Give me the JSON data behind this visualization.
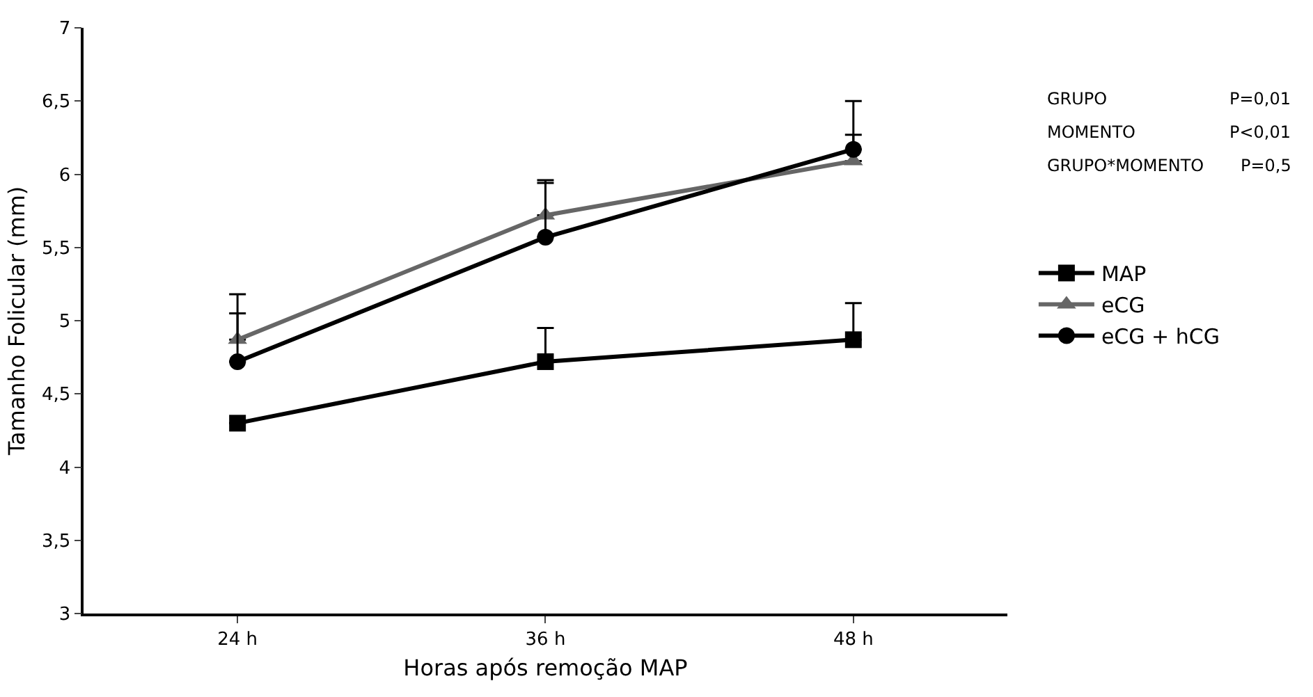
{
  "chart_data": {
    "type": "line",
    "xlabel": "Horas após remoção MAP",
    "ylabel": "Tamanho Folicular (mm)",
    "categories": [
      "24 h",
      "36 h",
      "48 h"
    ],
    "series": [
      {
        "name": "MAP",
        "color": "#000000",
        "marker": "square",
        "values": [
          4.3,
          4.72,
          4.87
        ],
        "errors": [
          null,
          [
            4.72,
            4.95
          ],
          [
            4.87,
            5.12
          ]
        ]
      },
      {
        "name": "eCG",
        "color": "#666666",
        "marker": "triangle",
        "values": [
          4.87,
          5.72,
          6.09
        ],
        "errors": [
          [
            4.87,
            5.18
          ],
          [
            5.72,
            5.96
          ],
          [
            6.09,
            6.27
          ]
        ]
      },
      {
        "name": "eCG + hCG",
        "color": "#000000",
        "marker": "circle",
        "values": [
          4.72,
          5.57,
          6.17
        ],
        "errors": [
          [
            4.72,
            5.05
          ],
          [
            5.57,
            5.94
          ],
          [
            6.17,
            6.5
          ]
        ]
      }
    ],
    "ylim": [
      3,
      7
    ],
    "yticks": [
      {
        "value": 3,
        "label": "3"
      },
      {
        "value": 3.5,
        "label": "3,5"
      },
      {
        "value": 4,
        "label": "4"
      },
      {
        "value": 4.5,
        "label": "4,5"
      },
      {
        "value": 5,
        "label": "5"
      },
      {
        "value": 5.5,
        "label": "5,5"
      },
      {
        "value": 6,
        "label": "6"
      },
      {
        "value": 6.5,
        "label": "6,5"
      },
      {
        "value": 7,
        "label": "7"
      }
    ],
    "legend": "right",
    "line_style": "solid",
    "annotations": [
      "GRUPO",
      "P=0,01",
      "MOMENTO",
      "P<0,01",
      "GRUPO*MOMENTO",
      "P=0,5"
    ]
  }
}
